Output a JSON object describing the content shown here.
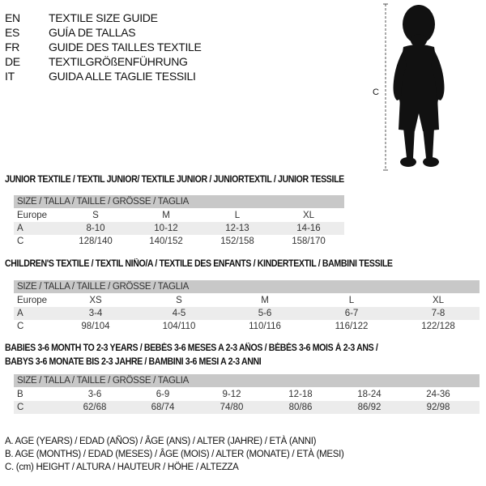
{
  "languages": [
    {
      "code": "EN",
      "label": "TEXTILE SIZE GUIDE"
    },
    {
      "code": "ES",
      "label": "GUÍA DE TALLAS"
    },
    {
      "code": "FR",
      "label": "GUIDE DES TAILLES TEXTILE"
    },
    {
      "code": "DE",
      "label": "TEXTILGRÖßENFÜHRUNG"
    },
    {
      "code": "IT",
      "label": "GUIDA ALLE TAGLIE TESSILI"
    }
  ],
  "figure": {
    "measure_label": "C"
  },
  "size_header": "SIZE / TALLA / TAILLE / GRÖSSE / TAGLIA",
  "junior": {
    "title": "JUNIOR TEXTILE / TEXTIL JUNIOR/ TEXTILE JUNIOR / JUNIORTEXTIL / JUNIOR TESSILE",
    "rows": [
      {
        "label": "Europe",
        "values": [
          "S",
          "M",
          "L",
          "XL"
        ]
      },
      {
        "label": "A",
        "values": [
          "8-10",
          "10-12",
          "12-13",
          "14-16"
        ]
      },
      {
        "label": "C",
        "values": [
          "128/140",
          "140/152",
          "152/158",
          "158/170"
        ]
      }
    ]
  },
  "children": {
    "title": "CHILDREN'S TEXTILE / TEXTIL NIÑO/A / TEXTILE DES ENFANTS / KINDERTEXTIL / BAMBINI TESSILE",
    "rows": [
      {
        "label": "Europe",
        "values": [
          "XS",
          "S",
          "M",
          "L",
          "XL"
        ]
      },
      {
        "label": "A",
        "values": [
          "3-4",
          "4-5",
          "5-6",
          "6-7",
          "7-8"
        ]
      },
      {
        "label": "C",
        "values": [
          "98/104",
          "104/110",
          "110/116",
          "116/122",
          "122/128"
        ]
      }
    ]
  },
  "babies": {
    "title_line1": "BABIES 3-6 MONTH TO 2-3 YEARS / BEBÉS 3-6 MESES A 2-3 AÑOS / BÉBÉS 3-6 MOIS À 2-3 ANS /",
    "title_line2": "BABYS 3-6 MONATE BIS 2-3 JAHRE / BAMBINI 3-6 MESI A 2-3 ANNI",
    "rows": [
      {
        "label": "B",
        "values": [
          "3-6",
          "6-9",
          "9-12",
          "12-18",
          "18-24",
          "24-36"
        ]
      },
      {
        "label": "C",
        "values": [
          "62/68",
          "68/74",
          "74/80",
          "80/86",
          "86/92",
          "92/98"
        ]
      }
    ]
  },
  "legend": [
    "A. AGE (YEARS) / EDAD (AÑOS) / ÂGE (ANS) / ALTER (JAHRE) / ETÀ (ANNI)",
    "B. AGE (MONTHS) / EDAD (MESES) / ÂGE (MOIS) / ALTER (MONATE) / ETÀ (MESI)",
    "C. (cm) HEIGHT / ALTURA / HAUTEUR / HÖHE / ALTEZZA"
  ]
}
